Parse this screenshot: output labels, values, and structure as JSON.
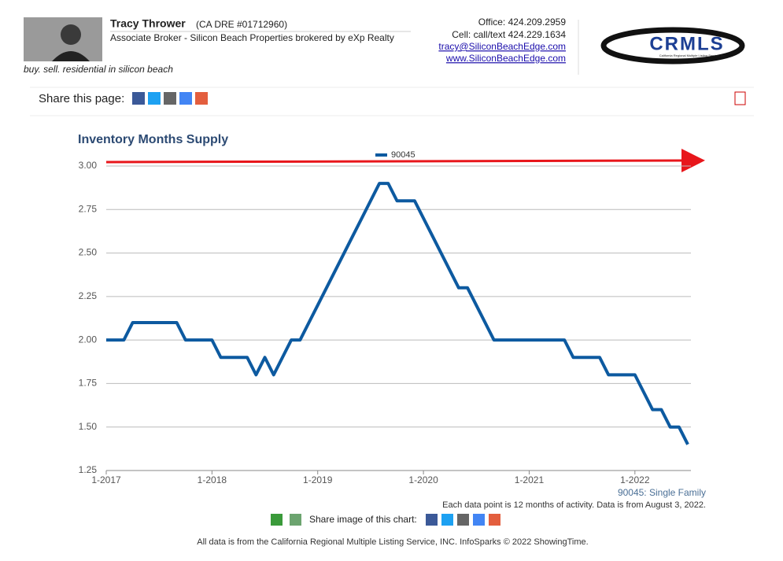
{
  "header": {
    "name": "Tracy Thrower",
    "license": "(CA DRE #01712960)",
    "position": "Associate Broker - Silicon Beach Properties brokered by eXp Realty",
    "tagline": "buy. sell. residential in silicon beach",
    "office": "Office: 424.209.2959",
    "cell": "Cell: call/text 424.229.1634",
    "email": "tracy@SiliconBeachEdge.com",
    "website": "www.SiliconBeachEdge.com",
    "logo": "CRMLS",
    "logo_sub": "California Regional Multiple Listing Service, Inc."
  },
  "share": {
    "label": "Share this page:"
  },
  "chart_data": {
    "type": "line",
    "title": "Inventory Months Supply",
    "categories": [
      "1-2017",
      null,
      null,
      null,
      null,
      null,
      null,
      null,
      null,
      null,
      null,
      null,
      "1-2018",
      null,
      null,
      null,
      null,
      null,
      null,
      null,
      null,
      null,
      null,
      null,
      "1-2019",
      null,
      null,
      null,
      null,
      null,
      null,
      null,
      null,
      null,
      null,
      null,
      "1-2020",
      null,
      null,
      null,
      null,
      null,
      null,
      null,
      null,
      null,
      null,
      null,
      "1-2021",
      null,
      null,
      null,
      null,
      null,
      null,
      null,
      null,
      null,
      null,
      null,
      "1-2022",
      null,
      null,
      null,
      null,
      null,
      null
    ],
    "series": [
      {
        "name": "90045",
        "color": "#0d5aa0",
        "values": [
          2.0,
          2.0,
          2.0,
          2.1,
          2.1,
          2.1,
          2.1,
          2.1,
          2.1,
          2.0,
          2.0,
          2.0,
          2.0,
          1.9,
          1.9,
          1.9,
          1.9,
          1.8,
          1.9,
          1.8,
          1.9,
          2.0,
          2.0,
          2.1,
          2.2,
          2.3,
          2.4,
          2.5,
          2.6,
          2.7,
          2.8,
          2.9,
          2.9,
          2.8,
          2.8,
          2.8,
          2.7,
          2.6,
          2.5,
          2.4,
          2.3,
          2.3,
          2.2,
          2.1,
          2.0,
          2.0,
          2.0,
          2.0,
          2.0,
          2.0,
          2.0,
          2.0,
          2.0,
          1.9,
          1.9,
          1.9,
          1.9,
          1.8,
          1.8,
          1.8,
          1.8,
          1.7,
          1.6,
          1.6,
          1.5,
          1.5,
          1.4
        ]
      }
    ],
    "ylim": [
      1.25,
      3.0
    ],
    "yticks": [
      1.25,
      {
        "value": 1.5,
        "label": "1.50"
      },
      1.75,
      {
        "value": 2.0,
        "label": "2.00"
      },
      2.25,
      {
        "value": 2.5,
        "label": "2.50"
      },
      2.75,
      {
        "value": 3.0,
        "label": "3.00"
      }
    ],
    "grid": true,
    "footnote": "90045: Single Family",
    "note": "Each data point is 12 months of activity. Data is from August 3, 2022."
  },
  "share_image": {
    "label": "Share image of this chart:"
  },
  "footer": {
    "text": "All data is from the California Regional Multiple Listing Service, INC. InfoSparks © 2022 ShowingTime."
  }
}
